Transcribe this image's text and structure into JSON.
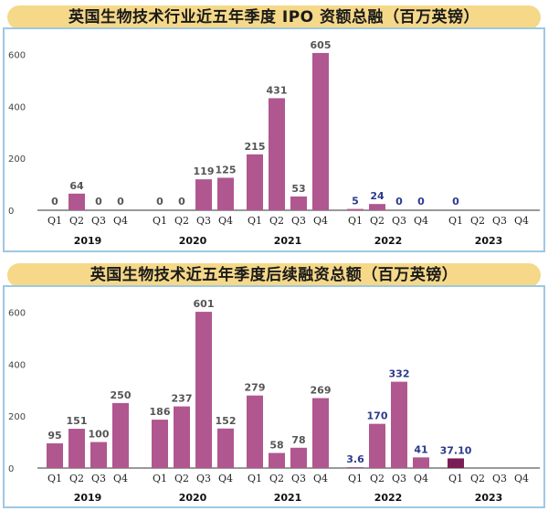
{
  "chart_data": [
    {
      "type": "bar",
      "title": "英国生物技术行业近五年季度 IPO 资额总融（百万英镑）",
      "xlabel": "",
      "ylabel": "",
      "ylim": [
        0,
        640
      ],
      "yticks": [
        0,
        200,
        400,
        600
      ],
      "grid": false,
      "groups": [
        {
          "year": "2019",
          "quarters": [
            "Q1",
            "Q2",
            "Q3",
            "Q4"
          ],
          "values": [
            0,
            64,
            0,
            0
          ],
          "labels": [
            "0",
            "64",
            "0",
            "0"
          ],
          "label_color": "#555555"
        },
        {
          "year": "2020",
          "quarters": [
            "Q1",
            "Q2",
            "Q3",
            "Q4"
          ],
          "values": [
            0,
            0,
            119,
            125
          ],
          "labels": [
            "0",
            "0",
            "119",
            "125"
          ],
          "label_color": "#555555"
        },
        {
          "year": "2021",
          "quarters": [
            "Q1",
            "Q2",
            "Q3",
            "Q4"
          ],
          "values": [
            215,
            431,
            53,
            605
          ],
          "labels": [
            "215",
            "431",
            "53",
            "605"
          ],
          "label_color": "#555555"
        },
        {
          "year": "2022",
          "quarters": [
            "Q1",
            "Q2",
            "Q3",
            "Q4"
          ],
          "values": [
            5,
            24,
            0,
            0
          ],
          "labels": [
            "5",
            "24",
            "0",
            "0"
          ],
          "label_color": "#2b3a8c"
        },
        {
          "year": "2023",
          "quarters": [
            "Q1",
            "Q2",
            "Q3",
            "Q4"
          ],
          "values": [
            0,
            null,
            null,
            null
          ],
          "labels": [
            "0",
            "",
            "",
            ""
          ],
          "label_color": "#2b3a8c"
        }
      ]
    },
    {
      "type": "bar",
      "title": "英国生物技术近五年季度后续融资总额（百万英镑）",
      "xlabel": "",
      "ylabel": "",
      "ylim": [
        0,
        640
      ],
      "yticks": [
        0,
        200,
        400,
        600
      ],
      "grid": false,
      "groups": [
        {
          "year": "2019",
          "quarters": [
            "Q1",
            "Q2",
            "Q3",
            "Q4"
          ],
          "values": [
            95,
            151,
            100,
            250
          ],
          "labels": [
            "95",
            "151",
            "100",
            "250"
          ],
          "label_color": "#555555"
        },
        {
          "year": "2020",
          "quarters": [
            "Q1",
            "Q2",
            "Q3",
            "Q4"
          ],
          "values": [
            186,
            237,
            601,
            152
          ],
          "labels": [
            "186",
            "237",
            "601",
            "152"
          ],
          "label_color": "#555555"
        },
        {
          "year": "2021",
          "quarters": [
            "Q1",
            "Q2",
            "Q3",
            "Q4"
          ],
          "values": [
            279,
            58,
            78,
            269
          ],
          "labels": [
            "279",
            "58",
            "78",
            "269"
          ],
          "label_color": "#555555"
        },
        {
          "year": "2022",
          "quarters": [
            "Q1",
            "Q2",
            "Q3",
            "Q4"
          ],
          "values": [
            3.6,
            170,
            332,
            41
          ],
          "labels": [
            "3.6",
            "170",
            "332",
            "41"
          ],
          "label_color": "#2b3a8c"
        },
        {
          "year": "2023",
          "quarters": [
            "Q1",
            "Q2",
            "Q3",
            "Q4"
          ],
          "values": [
            37.1,
            null,
            null,
            null
          ],
          "labels": [
            "37.10",
            "",
            "",
            ""
          ],
          "label_color": "#2b3a8c"
        }
      ]
    }
  ],
  "colors": {
    "bar": "#b0578f",
    "bar_highlight": "#7a1e55",
    "banner": "#f5d888",
    "frame": "#9ec7e3"
  }
}
